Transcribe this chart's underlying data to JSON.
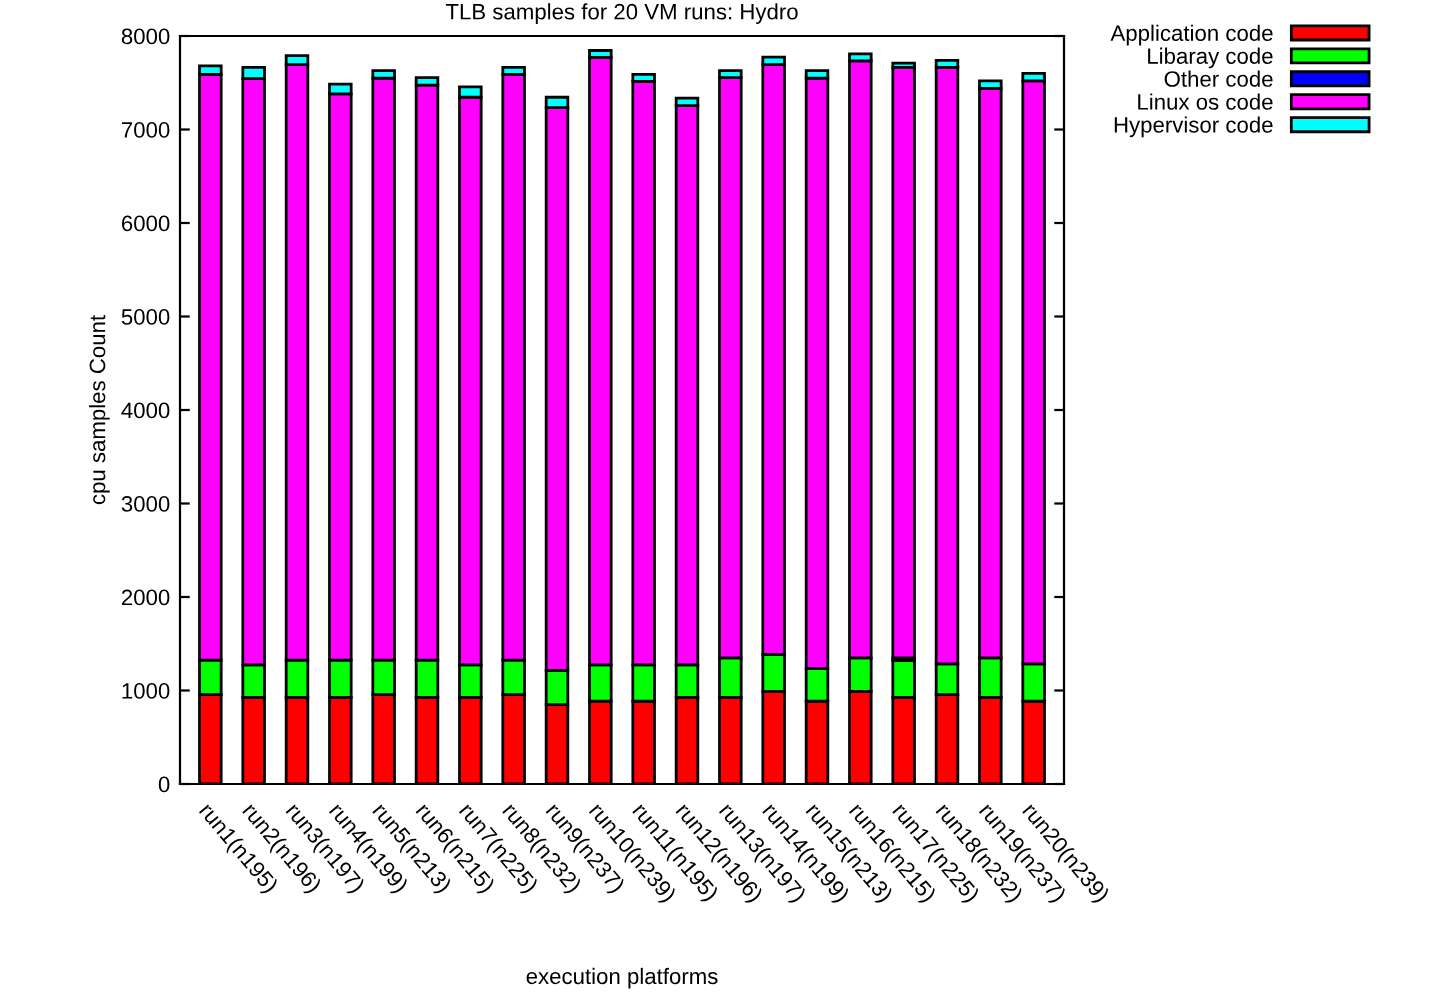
{
  "chart_data": {
    "type": "bar",
    "stacked": true,
    "title": "TLB samples for 20 VM runs: Hydro",
    "xlabel": "execution platforms",
    "ylabel": "cpu samples Count",
    "categories": [
      "run1(n195)",
      "run2(n196)",
      "run3(n197)",
      "run4(n199)",
      "run5(n213)",
      "run6(n215)",
      "run7(n225)",
      "run8(n232)",
      "run9(n237)",
      "run10(n239)",
      "run11(n195)",
      "run12(n196)",
      "run13(n197)",
      "run14(n199)",
      "run15(n213)",
      "run16(n215)",
      "run17(n225)",
      "run18(n232)",
      "run19(n237)",
      "run20(n239)"
    ],
    "series": [
      {
        "name": "Application code",
        "color": "#ff0000",
        "values": [
          955,
          925,
          925,
          925,
          955,
          925,
          925,
          955,
          850,
          885,
          885,
          925,
          925,
          990,
          885,
          990,
          925,
          955,
          925,
          885
        ]
      },
      {
        "name": "Libaray code",
        "color": "#00ff00",
        "values": [
          370,
          350,
          400,
          400,
          370,
          400,
          350,
          370,
          365,
          390,
          390,
          350,
          425,
          395,
          350,
          360,
          395,
          330,
          425,
          400
        ]
      },
      {
        "name": "Other code",
        "color": "#0000ff",
        "values": [
          0,
          0,
          0,
          0,
          0,
          0,
          0,
          0,
          0,
          0,
          0,
          0,
          0,
          0,
          0,
          0,
          30,
          0,
          0,
          0
        ]
      },
      {
        "name": "Linux os code",
        "color": "#ff00ff",
        "values": [
          6265,
          6270,
          6370,
          6055,
          6225,
          6150,
          6070,
          6265,
          6020,
          6495,
          6240,
          5980,
          6205,
          6310,
          6315,
          6385,
          6315,
          6380,
          6090,
          6235
        ]
      },
      {
        "name": "Hypervisor code",
        "color": "#00ffff",
        "values": [
          90,
          120,
          95,
          105,
          80,
          80,
          110,
          75,
          110,
          75,
          75,
          80,
          75,
          80,
          80,
          75,
          45,
          75,
          80,
          80
        ]
      }
    ],
    "ylim": [
      0,
      8000
    ],
    "yticks": [
      0,
      1000,
      2000,
      3000,
      4000,
      5000,
      6000,
      7000,
      8000
    ],
    "grid": false,
    "legend": "top right"
  }
}
